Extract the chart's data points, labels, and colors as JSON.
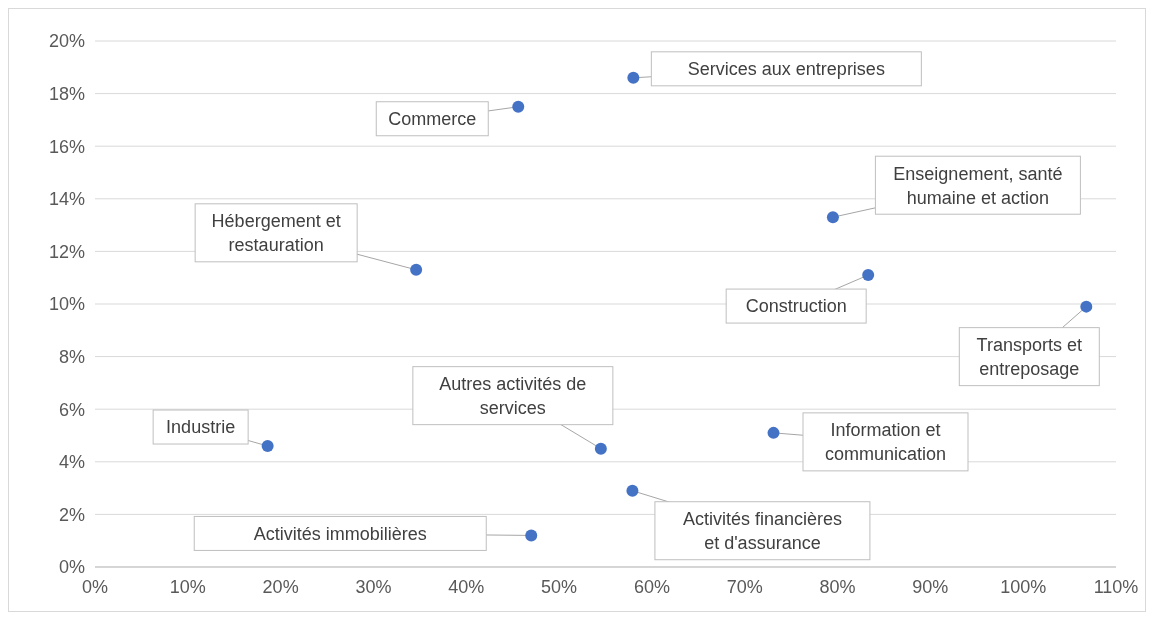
{
  "chart_data": {
    "type": "scatter",
    "x": [
      58.0,
      45.6,
      79.5,
      34.6,
      83.3,
      106.8,
      18.6,
      54.5,
      73.1,
      57.9,
      47.0
    ],
    "series": [
      {
        "color": "#4472c4",
        "values": [
          18.6,
          17.5,
          13.3,
          11.3,
          11.1,
          9.9,
          4.6,
          4.5,
          5.1,
          2.9,
          1.2
        ]
      }
    ],
    "annotations": [
      {
        "text": "Services aux entreprises",
        "x": 58.0,
        "y": 18.6
      },
      {
        "text": "Commerce",
        "x": 45.6,
        "y": 17.5
      },
      {
        "text": "Enseignement, santé humaine et action",
        "x": 79.5,
        "y": 13.3
      },
      {
        "text": "Hébergement et restauration",
        "x": 34.6,
        "y": 11.3
      },
      {
        "text": "Construction",
        "x": 83.3,
        "y": 11.1
      },
      {
        "text": "Transports et entreposage",
        "x": 106.8,
        "y": 9.9
      },
      {
        "text": "Industrie",
        "x": 18.6,
        "y": 4.6
      },
      {
        "text": "Autres activités de services",
        "x": 54.5,
        "y": 4.5
      },
      {
        "text": "Information et communication",
        "x": 73.1,
        "y": 5.1
      },
      {
        "text": "Activités financières et d'assurance",
        "x": 57.9,
        "y": 2.9
      },
      {
        "text": "Activités immobilières",
        "x": 47.0,
        "y": 1.2
      }
    ],
    "xlim": [
      0,
      110
    ],
    "xticks": [
      {
        "value": 0,
        "label": "0%"
      },
      {
        "value": 10,
        "label": "10%"
      },
      {
        "value": 20,
        "label": "20%"
      },
      {
        "value": 30,
        "label": "30%"
      },
      {
        "value": 40,
        "label": "40%"
      },
      {
        "value": 50,
        "label": "50%"
      },
      {
        "value": 60,
        "label": "60%"
      },
      {
        "value": 70,
        "label": "70%"
      },
      {
        "value": 80,
        "label": "80%"
      },
      {
        "value": 90,
        "label": "90%"
      },
      {
        "value": 100,
        "label": "100%"
      },
      {
        "value": 110,
        "label": "110%"
      }
    ],
    "ylim": [
      0,
      20
    ],
    "yticks": [
      {
        "value": 0,
        "label": "0%"
      },
      {
        "value": 2,
        "label": "2%"
      },
      {
        "value": 4,
        "label": "4%"
      },
      {
        "value": 6,
        "label": "6%"
      },
      {
        "value": 8,
        "label": "8%"
      },
      {
        "value": 10,
        "label": "10%"
      },
      {
        "value": 12,
        "label": "12%"
      },
      {
        "value": 14,
        "label": "14%"
      },
      {
        "value": 16,
        "label": "16%"
      },
      {
        "value": 18,
        "label": "18%"
      },
      {
        "value": 20,
        "label": "20%"
      }
    ],
    "grid": "y",
    "marker": "circle"
  }
}
